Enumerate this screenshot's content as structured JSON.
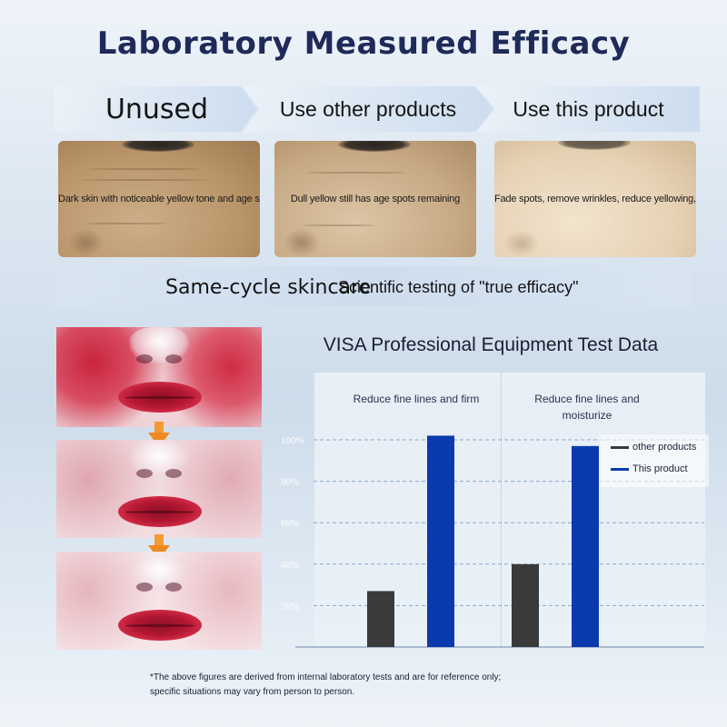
{
  "page": {
    "title": "Laboratory Measured Efficacy",
    "footnote": "*The above figures are derived from internal laboratory tests and are for reference only; specific situations may vary from person to person."
  },
  "comparison": {
    "steps": [
      "Unused",
      "Use other products",
      "Use this product"
    ],
    "captions": [
      "Dark skin with noticeable yellow tone and age spots",
      "Dull yellow still has age spots remaining",
      "Fade spots, remove wrinkles, reduce yellowing, brighten"
    ],
    "cycle_label": "Same-cycle skincare",
    "cycle_sub": "Scientific testing of \"true efficacy\""
  },
  "colors": {
    "title": "#1e2a58",
    "other_products": "#3a3a3a",
    "this_product": "#0a3aad",
    "arrow": "#f39a35",
    "gridline": "#8fa8c8"
  },
  "chart_data": {
    "type": "bar",
    "title": "VISA Professional Equipment Test Data",
    "categories": [
      "Reduce fine lines and firm",
      "Reduce fine lines and moisturize"
    ],
    "series": [
      {
        "name": "other products",
        "values": [
          27,
          40
        ]
      },
      {
        "name": "This product",
        "values": [
          102,
          97
        ]
      }
    ],
    "yticks": [
      "20%",
      "40%",
      "60%",
      "80%",
      "100%"
    ],
    "ytick_values": [
      20,
      40,
      60,
      80,
      100
    ],
    "ylim": [
      0,
      110
    ],
    "grid": true,
    "legend": "top-right"
  }
}
